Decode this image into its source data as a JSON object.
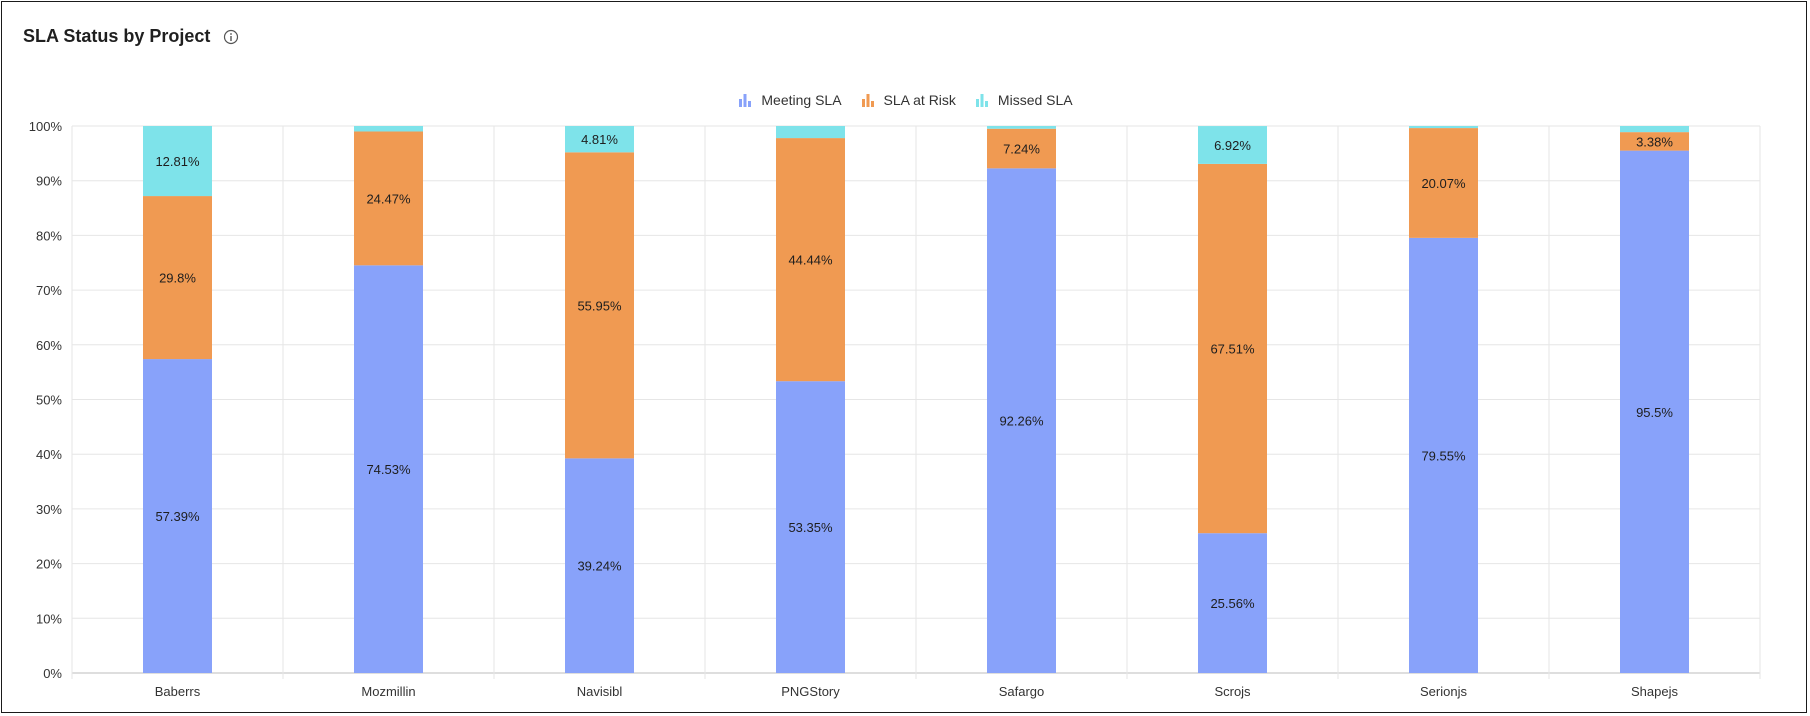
{
  "title": "SLA Status by Project",
  "colors": {
    "meeting": "#88a2fa",
    "at_risk": "#f09a52",
    "missed": "#7ee3ea",
    "grid": "#e6e6e6",
    "axis_text": "#333333"
  },
  "chart_data": {
    "type": "bar",
    "stacked": true,
    "percent": true,
    "title": "SLA Status by Project",
    "xlabel": "",
    "ylabel": "",
    "ylim": [
      0,
      100
    ],
    "yticks": [
      "0%",
      "10%",
      "20%",
      "30%",
      "40%",
      "50%",
      "60%",
      "70%",
      "80%",
      "90%",
      "100%"
    ],
    "legend_position": "top-center",
    "categories": [
      "Baberrs",
      "Mozmillin",
      "Navisibl",
      "PNGStory",
      "Safargo",
      "Scrojs",
      "Serionjs",
      "Shapejs"
    ],
    "series": [
      {
        "name": "Meeting SLA",
        "color_key": "meeting",
        "values": [
          57.39,
          74.53,
          39.24,
          53.35,
          92.26,
          25.56,
          79.55,
          95.5
        ],
        "labels": [
          "57.39%",
          "74.53%",
          "39.24%",
          "53.35%",
          "92.26%",
          "25.56%",
          "79.55%",
          "95.5%"
        ]
      },
      {
        "name": "SLA at Risk",
        "color_key": "at_risk",
        "values": [
          29.8,
          24.47,
          55.95,
          44.44,
          7.24,
          67.51,
          20.07,
          3.38
        ],
        "labels": [
          "29.8%",
          "24.47%",
          "55.95%",
          "44.44%",
          "7.24%",
          "67.51%",
          "20.07%",
          "3.38%"
        ]
      },
      {
        "name": "Missed SLA",
        "color_key": "missed",
        "values": [
          12.81,
          1.0,
          4.81,
          2.21,
          0.5,
          6.92,
          0.38,
          1.12
        ],
        "labels": [
          "12.81%",
          "",
          "4.81%",
          "",
          "",
          "6.92%",
          "",
          ""
        ]
      }
    ]
  }
}
